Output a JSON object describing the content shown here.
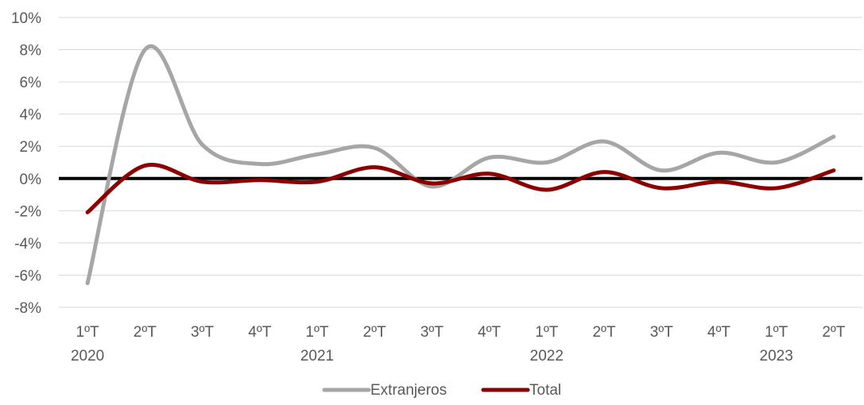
{
  "chart_data": {
    "type": "line",
    "title": "",
    "xlabel": "",
    "ylabel": "",
    "categories": [
      "1ºT",
      "2ºT",
      "3ºT",
      "4ºT",
      "1ºT",
      "2ºT",
      "3ºT",
      "4ºT",
      "1ºT",
      "2ºT",
      "3ºT",
      "4ºT",
      "1ºT",
      "2ºT"
    ],
    "years": [
      {
        "label": "2020",
        "category_index": 0
      },
      {
        "label": "2021",
        "category_index": 4
      },
      {
        "label": "2022",
        "category_index": 8
      },
      {
        "label": "2023",
        "category_index": 12
      }
    ],
    "ylim": [
      -8,
      10
    ],
    "yticks": [
      -8,
      -6,
      -4,
      -2,
      0,
      2,
      4,
      6,
      8,
      10
    ],
    "ytick_format": "percent",
    "grid": true,
    "legend_position": "bottom-center",
    "series": [
      {
        "name": "Extranjeros",
        "color": "#a6a6a6",
        "values": [
          -6.5,
          8.0,
          2.1,
          0.9,
          1.5,
          1.9,
          -0.5,
          1.3,
          1.0,
          2.3,
          0.5,
          1.6,
          1.0,
          2.6
        ]
      },
      {
        "name": "Total",
        "color": "#8b0000",
        "values": [
          -2.1,
          0.8,
          -0.2,
          -0.1,
          -0.2,
          0.7,
          -0.3,
          0.3,
          -0.7,
          0.4,
          -0.6,
          -0.2,
          -0.6,
          0.5
        ]
      }
    ],
    "zero_line_color": "#000000"
  }
}
